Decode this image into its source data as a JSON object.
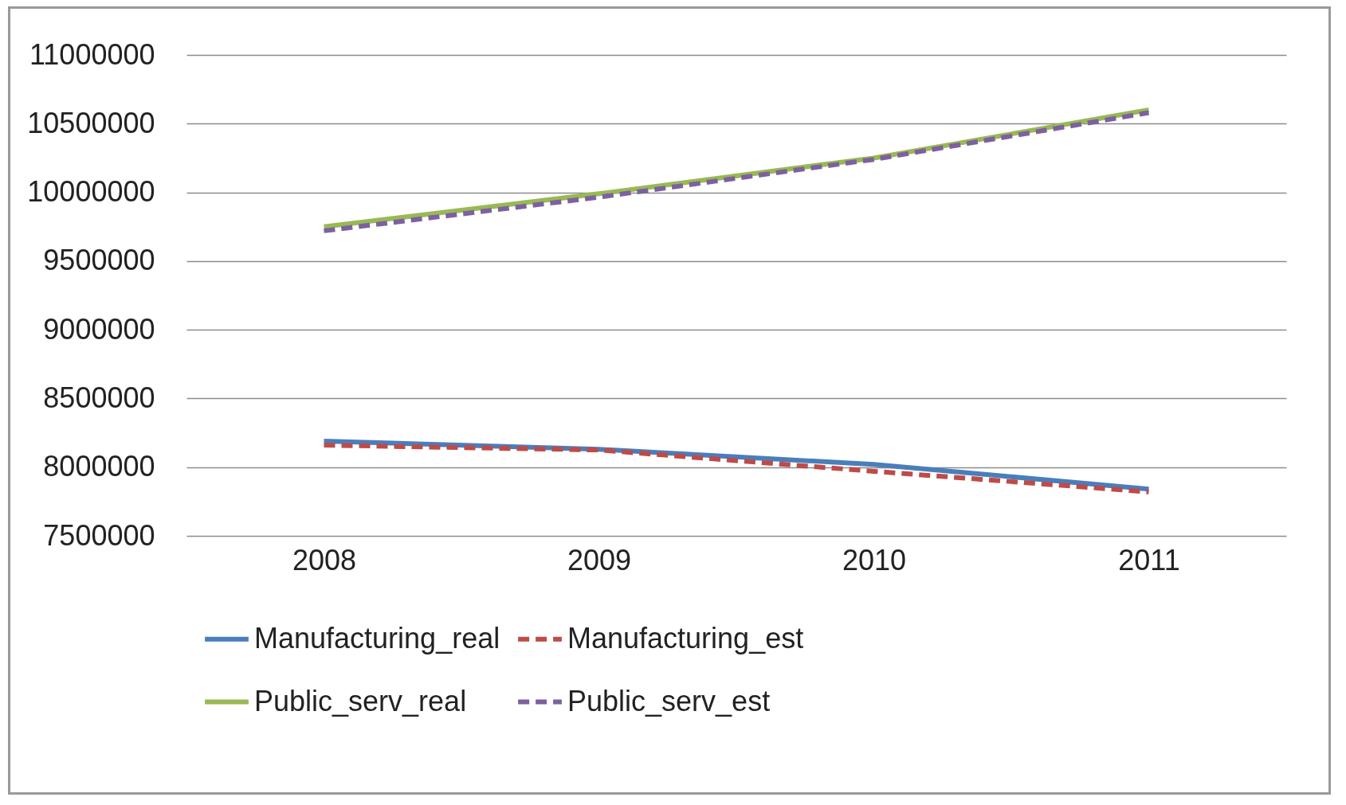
{
  "chart_data": {
    "type": "line",
    "categories": [
      "2008",
      "2009",
      "2010",
      "2011"
    ],
    "series": [
      {
        "name": "Manufacturing_real",
        "color": "#4a7ebb",
        "line_style": "solid",
        "values": [
          8190000,
          8130000,
          8020000,
          7840000
        ]
      },
      {
        "name": "Manufacturing_est",
        "color": "#be4b48",
        "line_style": "dashed",
        "values": [
          8160000,
          8125000,
          7970000,
          7820000
        ]
      },
      {
        "name": "Public_serv_real",
        "color": "#98b954",
        "line_style": "solid",
        "values": [
          9750000,
          9990000,
          10250000,
          10600000
        ]
      },
      {
        "name": "Public_serv_est",
        "color": "#7d60a0",
        "line_style": "dashed",
        "values": [
          9720000,
          9965000,
          10240000,
          10580000
        ]
      }
    ],
    "ylim": [
      7500000,
      11000000
    ],
    "yticks": [
      7500000,
      8000000,
      8500000,
      9000000,
      9500000,
      10000000,
      10500000,
      11000000
    ],
    "grid": "y",
    "legend": "bottom",
    "marker": "none"
  }
}
